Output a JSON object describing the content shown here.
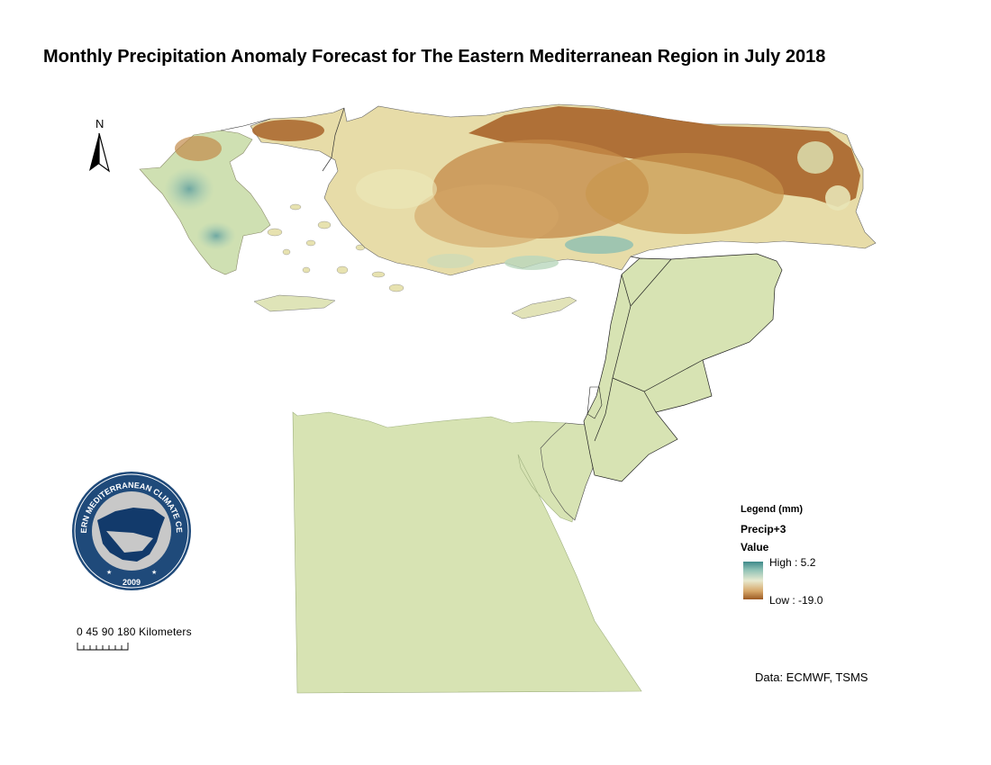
{
  "title": "Monthly Precipitation Anomaly Forecast for The Eastern Mediterranean Region in July 2018",
  "north_arrow": {
    "label": "N",
    "icon": "north-arrow-icon"
  },
  "logo": {
    "text_ring": "EASTERN MEDITERRANEAN CLIMATE CENTRE",
    "year": "2009",
    "colors": {
      "ring": "#1f4a7a",
      "map": "#123a6b",
      "land": "#c8c8c8"
    }
  },
  "scale_bar": {
    "labels": "0 45 90  180  Kilometers"
  },
  "legend": {
    "title": "Legend (mm)",
    "layer": "Precip+3",
    "field": "Value",
    "high_label": "High : 5.2",
    "low_label": "Low : -19.0",
    "high_color": "#3e8a8a",
    "low_color": "#9c5a22"
  },
  "data_source": "Data:  ECMWF, TSMS",
  "map_colors": {
    "neutral": "#d8e4b4",
    "dry": "#a8642a",
    "wet": "#7fb5a8"
  }
}
